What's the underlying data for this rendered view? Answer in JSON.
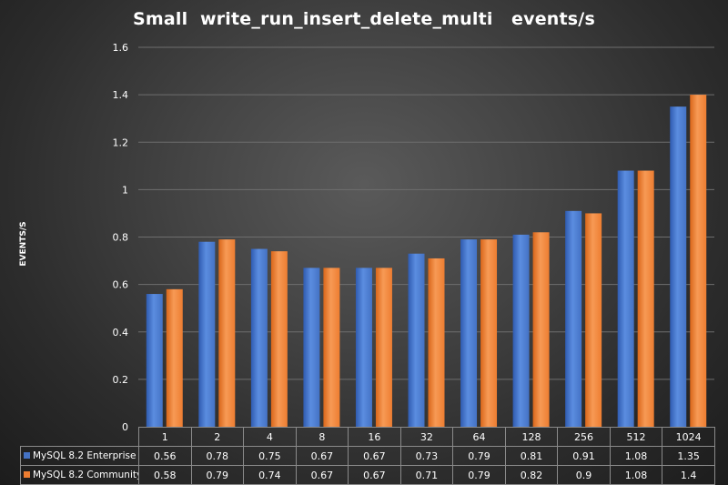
{
  "chart_data": {
    "type": "bar",
    "title": "Small  write_run_insert_delete_multi   events/s",
    "xlabel": "",
    "ylabel": "EVENTS/S",
    "categories": [
      "1",
      "2",
      "4",
      "8",
      "16",
      "32",
      "64",
      "128",
      "256",
      "512",
      "1024"
    ],
    "series": [
      {
        "name": "MySQL 8.2 Enterprise",
        "color": "#4472c4",
        "values": [
          0.56,
          0.78,
          0.75,
          0.67,
          0.67,
          0.73,
          0.79,
          0.81,
          0.91,
          1.08,
          1.35
        ]
      },
      {
        "name": "MySQL 8.2 Community",
        "color": "#ed7d31",
        "values": [
          0.58,
          0.79,
          0.74,
          0.67,
          0.67,
          0.71,
          0.79,
          0.82,
          0.9,
          1.08,
          1.4
        ]
      }
    ],
    "ylim": [
      0,
      1.6
    ],
    "yticks": [
      "0",
      "0.2",
      "0.4",
      "0.6",
      "0.8",
      "1",
      "1.2",
      "1.4",
      "1.6"
    ],
    "grid": true,
    "legend": "data-table"
  }
}
